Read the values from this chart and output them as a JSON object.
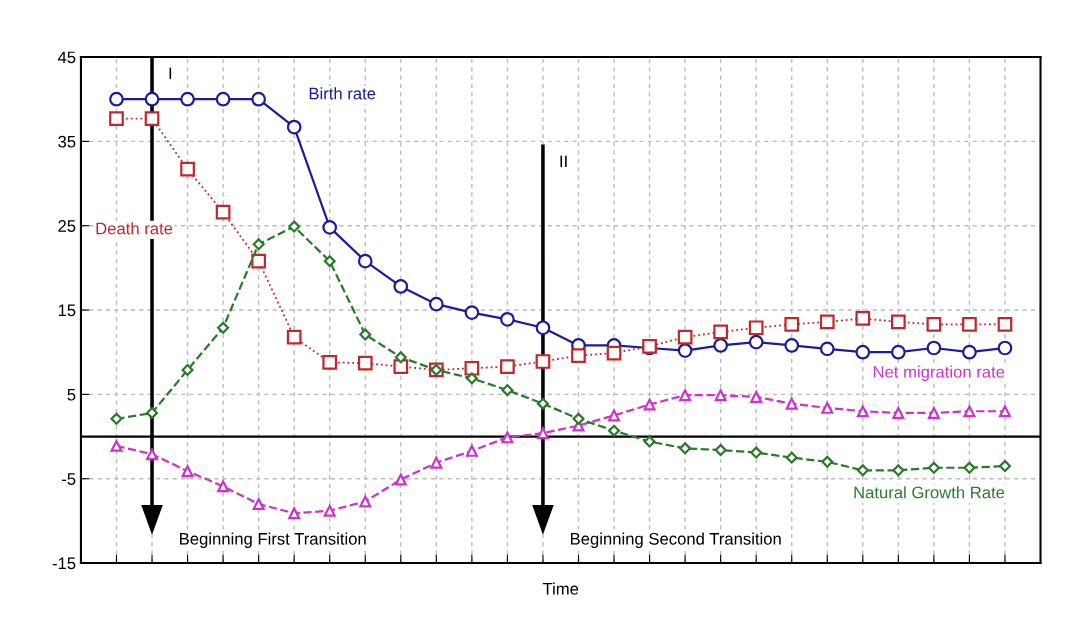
{
  "chart_data": {
    "type": "line",
    "xlabel": "Time",
    "categories": [
      null,
      null,
      null,
      null,
      null,
      null,
      null,
      null,
      null,
      null,
      null,
      null,
      null,
      null,
      null,
      null,
      null,
      null,
      null,
      null,
      null,
      null,
      null,
      null,
      null,
      null
    ],
    "series": [
      {
        "name": "Birth rate",
        "color": "#1c1c9c",
        "marker": "circle",
        "line_style": "solid",
        "values": [
          40,
          40,
          40,
          40,
          40,
          36.7,
          24.8,
          20.8,
          17.8,
          15.7,
          14.7,
          13.9,
          12.9,
          10.8,
          10.8,
          10.5,
          10.2,
          10.8,
          11.2,
          10.8,
          10.4,
          10,
          10,
          10.5,
          10,
          10.5
        ]
      },
      {
        "name": "Death rate",
        "color": "#c0282d",
        "marker": "square",
        "line_style": "dotted",
        "values": [
          37.7,
          37.7,
          31.7,
          26.6,
          20.8,
          11.8,
          8.8,
          8.7,
          8.3,
          7.9,
          8.1,
          8.3,
          8.9,
          9.6,
          9.9,
          10.7,
          11.8,
          12.4,
          12.9,
          13.3,
          13.6,
          14.0,
          13.6,
          13.3,
          13.3,
          13.3
        ]
      },
      {
        "name": "Net migration rate",
        "color": "#cc33cc",
        "marker": "triangle",
        "line_style": "dashed",
        "values": [
          -1.1,
          -2.1,
          -4.1,
          -5.9,
          -8.0,
          -9.1,
          -8.8,
          -7.7,
          -5.1,
          -3.1,
          -1.7,
          -0.1,
          0.4,
          1.3,
          2.5,
          3.8,
          4.9,
          4.9,
          4.7,
          3.9,
          3.4,
          3.0,
          2.8,
          2.8,
          3.0,
          3.0
        ]
      },
      {
        "name": "Natural Growth Rate",
        "color": "#2a7a2a",
        "marker": "diamond",
        "line_style": "dashed",
        "values": [
          2.1,
          2.8,
          7.9,
          12.9,
          22.8,
          24.9,
          20.8,
          12.1,
          9.4,
          7.9,
          6.9,
          5.5,
          3.9,
          2.1,
          0.7,
          -0.6,
          -1.4,
          -1.6,
          -1.9,
          -2.5,
          -3.0,
          -4.0,
          -4.0,
          -3.7,
          -3.7,
          -3.5
        ]
      }
    ],
    "ylim": [
      -15,
      45
    ],
    "yticks": [
      -15,
      -5,
      5,
      15,
      25,
      35,
      45
    ],
    "grid": true,
    "legend": false,
    "tick_labels": "y",
    "ref_lines": [
      {
        "axis": "y",
        "value": 0,
        "color": "#000000"
      }
    ],
    "annotations": [
      "I",
      "Beginning First Transition",
      "II",
      "Beginning Second Transition"
    ]
  }
}
